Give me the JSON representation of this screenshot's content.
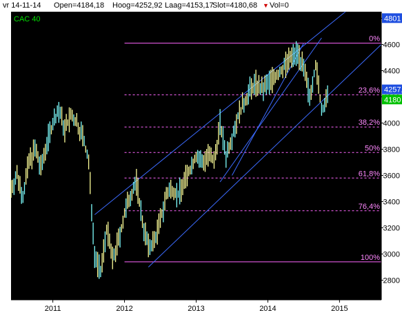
{
  "header": {
    "date": "vr 14-11-14",
    "open": "Open=4184,18",
    "high": "Hoog=4252,92",
    "low": "Laag=4153,17",
    "close": "Slot=4180,68",
    "volume": "Vol=0"
  },
  "colors": {
    "background": "#000000",
    "bars": "#ffff99",
    "bars_alt": "#7fffff",
    "trendlines": "#3c6bff",
    "fib_levels": "#ff66ff",
    "fib_text": "#ff88ff",
    "symbol": "#00e000",
    "price_tag_high": "#1f4fe0",
    "price_tag_close": "#00c000",
    "header_arrow": "#d00000"
  },
  "chart_data": {
    "type": "candlestick",
    "symbol": "CAC 40",
    "x_range": [
      "2010-06",
      "2015-08"
    ],
    "ylim": [
      2650,
      4850
    ],
    "x_tick_labels": [
      "2011",
      "2012",
      "2013",
      "2014",
      "2015"
    ],
    "y_tick_labels": [
      "2800",
      "3000",
      "3200",
      "3400",
      "3600",
      "3800",
      "4000",
      "4200",
      "4400",
      "4600",
      "4800"
    ],
    "price_tags": [
      {
        "label": "4801",
        "value": 4801
      },
      {
        "label": "4257,",
        "value": 4257
      },
      {
        "label": "4180",
        "value": 4180
      }
    ],
    "fib_levels": [
      {
        "label": "0%",
        "value": 4610,
        "style": "solid"
      },
      {
        "label": "23,6%",
        "value": 4215,
        "style": "dashed"
      },
      {
        "label": "38,2%",
        "value": 3970,
        "style": "dashed"
      },
      {
        "label": "50%",
        "value": 3775,
        "style": "dashed"
      },
      {
        "label": "61,8%",
        "value": 3580,
        "style": "dashed"
      },
      {
        "label": "76,4%",
        "value": 3330,
        "style": "dashed"
      },
      {
        "label": "100%",
        "value": 2940,
        "style": "solid"
      }
    ],
    "fib_start": "2012-01",
    "price_path": [
      [
        "2010-06",
        3500
      ],
      [
        "2010-07",
        3600
      ],
      [
        "2010-08",
        3450
      ],
      [
        "2010-09",
        3700
      ],
      [
        "2010-10",
        3800
      ],
      [
        "2010-11",
        3650
      ],
      [
        "2010-12",
        3850
      ],
      [
        "2011-01",
        4000
      ],
      [
        "2011-02",
        4100
      ],
      [
        "2011-03",
        3950
      ],
      [
        "2011-04",
        4050
      ],
      [
        "2011-05",
        4000
      ],
      [
        "2011-06",
        3900
      ],
      [
        "2011-07",
        3700
      ],
      [
        "2011-08",
        3000
      ],
      [
        "2011-09",
        2850
      ],
      [
        "2011-10",
        3200
      ],
      [
        "2011-11",
        2950
      ],
      [
        "2011-12",
        3100
      ],
      [
        "2012-01",
        3300
      ],
      [
        "2012-02",
        3450
      ],
      [
        "2012-03",
        3550
      ],
      [
        "2012-04",
        3250
      ],
      [
        "2012-05",
        3050
      ],
      [
        "2012-06",
        3100
      ],
      [
        "2012-07",
        3250
      ],
      [
        "2012-08",
        3450
      ],
      [
        "2012-09",
        3500
      ],
      [
        "2012-10",
        3450
      ],
      [
        "2012-11",
        3550
      ],
      [
        "2012-12",
        3650
      ],
      [
        "2013-01",
        3750
      ],
      [
        "2013-02",
        3700
      ],
      [
        "2013-03",
        3750
      ],
      [
        "2013-04",
        3700
      ],
      [
        "2013-05",
        4000
      ],
      [
        "2013-06",
        3750
      ],
      [
        "2013-07",
        3900
      ],
      [
        "2013-08",
        4050
      ],
      [
        "2013-09",
        4150
      ],
      [
        "2013-10",
        4250
      ],
      [
        "2013-11",
        4300
      ],
      [
        "2013-12",
        4250
      ],
      [
        "2014-01",
        4300
      ],
      [
        "2014-02",
        4350
      ],
      [
        "2014-03",
        4380
      ],
      [
        "2014-04",
        4450
      ],
      [
        "2014-05",
        4500
      ],
      [
        "2014-06",
        4550
      ],
      [
        "2014-07",
        4400
      ],
      [
        "2014-08",
        4200
      ],
      [
        "2014-09",
        4450
      ],
      [
        "2014-10",
        4100
      ],
      [
        "2014-11",
        4180
      ]
    ],
    "trendlines": [
      {
        "from": [
          "2011-08",
          3300
        ],
        "to": [
          "2015-02",
          4850
        ]
      },
      {
        "from": [
          "2012-05",
          2900
        ],
        "to": [
          "2015-08",
          4600
        ]
      },
      {
        "from": [
          "2013-07",
          3600
        ],
        "to": [
          "2014-07",
          4610
        ]
      },
      {
        "from": [
          "2013-05",
          3550
        ],
        "to": [
          "2014-10",
          4650
        ]
      }
    ]
  }
}
